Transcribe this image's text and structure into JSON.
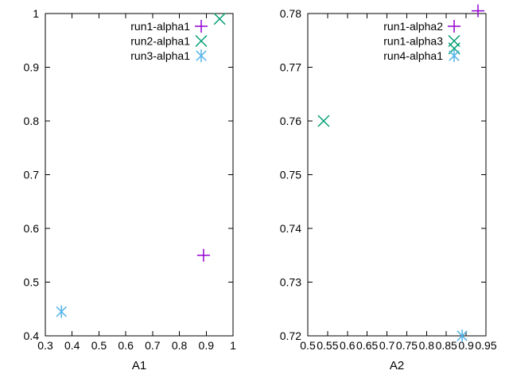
{
  "figure": {
    "background": "#ffffff",
    "text_color": "#000000",
    "axis_color": "#000000"
  },
  "chart_data": [
    {
      "type": "scatter",
      "title": "",
      "xlabel": "A1",
      "ylabel": "",
      "xlim": [
        0.3,
        1.0
      ],
      "ylim": [
        0.4,
        1.0
      ],
      "grid": false,
      "legend_position": "top-right-inside",
      "xtick_values": [
        0.3,
        0.4,
        0.5,
        0.6,
        0.7,
        0.8,
        0.9,
        1.0
      ],
      "xtick_labels": [
        "0.3",
        "0.4",
        "0.5",
        "0.6",
        "0.7",
        "0.8",
        "0.9",
        "1"
      ],
      "ytick_values": [
        0.4,
        0.5,
        0.6,
        0.7,
        0.8,
        0.9,
        1.0
      ],
      "ytick_labels": [
        "0.4",
        "0.5",
        "0.6",
        "0.7",
        "0.8",
        "0.9",
        "1"
      ],
      "series": [
        {
          "name": "run1-alpha1",
          "marker": "plus",
          "color": "#9400d3",
          "points": [
            [
              0.89,
              0.55
            ]
          ]
        },
        {
          "name": "run2-alpha1",
          "marker": "cross",
          "color": "#009e73",
          "points": [
            [
              0.95,
              0.99
            ]
          ]
        },
        {
          "name": "run3-alpha1",
          "marker": "asterisk",
          "color": "#56b4e9",
          "points": [
            [
              0.36,
              0.445
            ]
          ]
        }
      ]
    },
    {
      "type": "scatter",
      "title": "",
      "xlabel": "A2",
      "ylabel": "",
      "xlim": [
        0.5,
        0.95
      ],
      "ylim": [
        0.72,
        0.78
      ],
      "grid": false,
      "legend_position": "top-right-inside",
      "xtick_values": [
        0.5,
        0.55,
        0.6,
        0.65,
        0.7,
        0.75,
        0.8,
        0.85,
        0.9,
        0.95
      ],
      "xtick_labels": [
        "0.5",
        "0.55",
        "0.6",
        "0.65",
        "0.7",
        "0.75",
        "0.8",
        "0.85",
        "0.9",
        "0.95"
      ],
      "ytick_values": [
        0.72,
        0.73,
        0.74,
        0.75,
        0.76,
        0.77,
        0.78
      ],
      "ytick_labels": [
        "0.72",
        "0.73",
        "0.74",
        "0.75",
        "0.76",
        "0.77",
        "0.78"
      ],
      "series": [
        {
          "name": "run1-alpha2",
          "marker": "plus",
          "color": "#9400d3",
          "points": [
            [
              0.93,
              0.7805
            ]
          ]
        },
        {
          "name": "run1-alpha3",
          "marker": "cross",
          "color": "#009e73",
          "points": [
            [
              0.54,
              0.76
            ],
            [
              0.87,
              0.7735
            ]
          ]
        },
        {
          "name": "run4-alpha1",
          "marker": "asterisk",
          "color": "#56b4e9",
          "points": [
            [
              0.89,
              0.72
            ]
          ]
        }
      ]
    }
  ]
}
